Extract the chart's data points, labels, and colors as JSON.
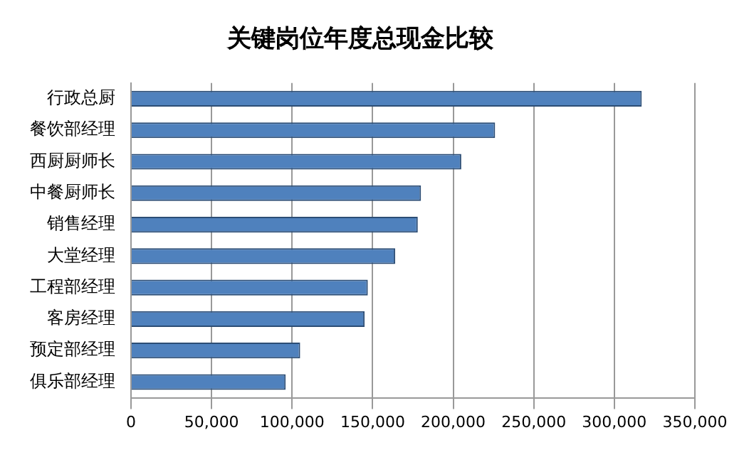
{
  "chart_data": {
    "type": "bar",
    "orientation": "horizontal",
    "title": "关键岗位年度总现金比较",
    "categories": [
      "行政总厨",
      "餐饮部经理",
      "西厨厨师长",
      "中餐厨师长",
      "销售经理",
      "大堂经理",
      "工程部经理",
      "客房经理",
      "预定部经理",
      "俱乐部经理"
    ],
    "values": [
      317000,
      226000,
      205000,
      180000,
      178000,
      164000,
      147000,
      145000,
      105000,
      96000
    ],
    "color": "#4f81bd",
    "xlim": [
      0,
      350000
    ],
    "xticks": [
      0,
      {
        "value": 50000,
        "label": "50,000"
      },
      {
        "value": 100000,
        "label": "100,000"
      },
      {
        "value": 150000,
        "label": "150,000"
      },
      {
        "value": 200000,
        "label": "200,000"
      },
      {
        "value": 250000,
        "label": "250,000"
      },
      {
        "value": 300000,
        "label": "300,000"
      },
      {
        "value": 350000,
        "label": "350,000"
      }
    ],
    "grid": "x",
    "legend": false
  }
}
